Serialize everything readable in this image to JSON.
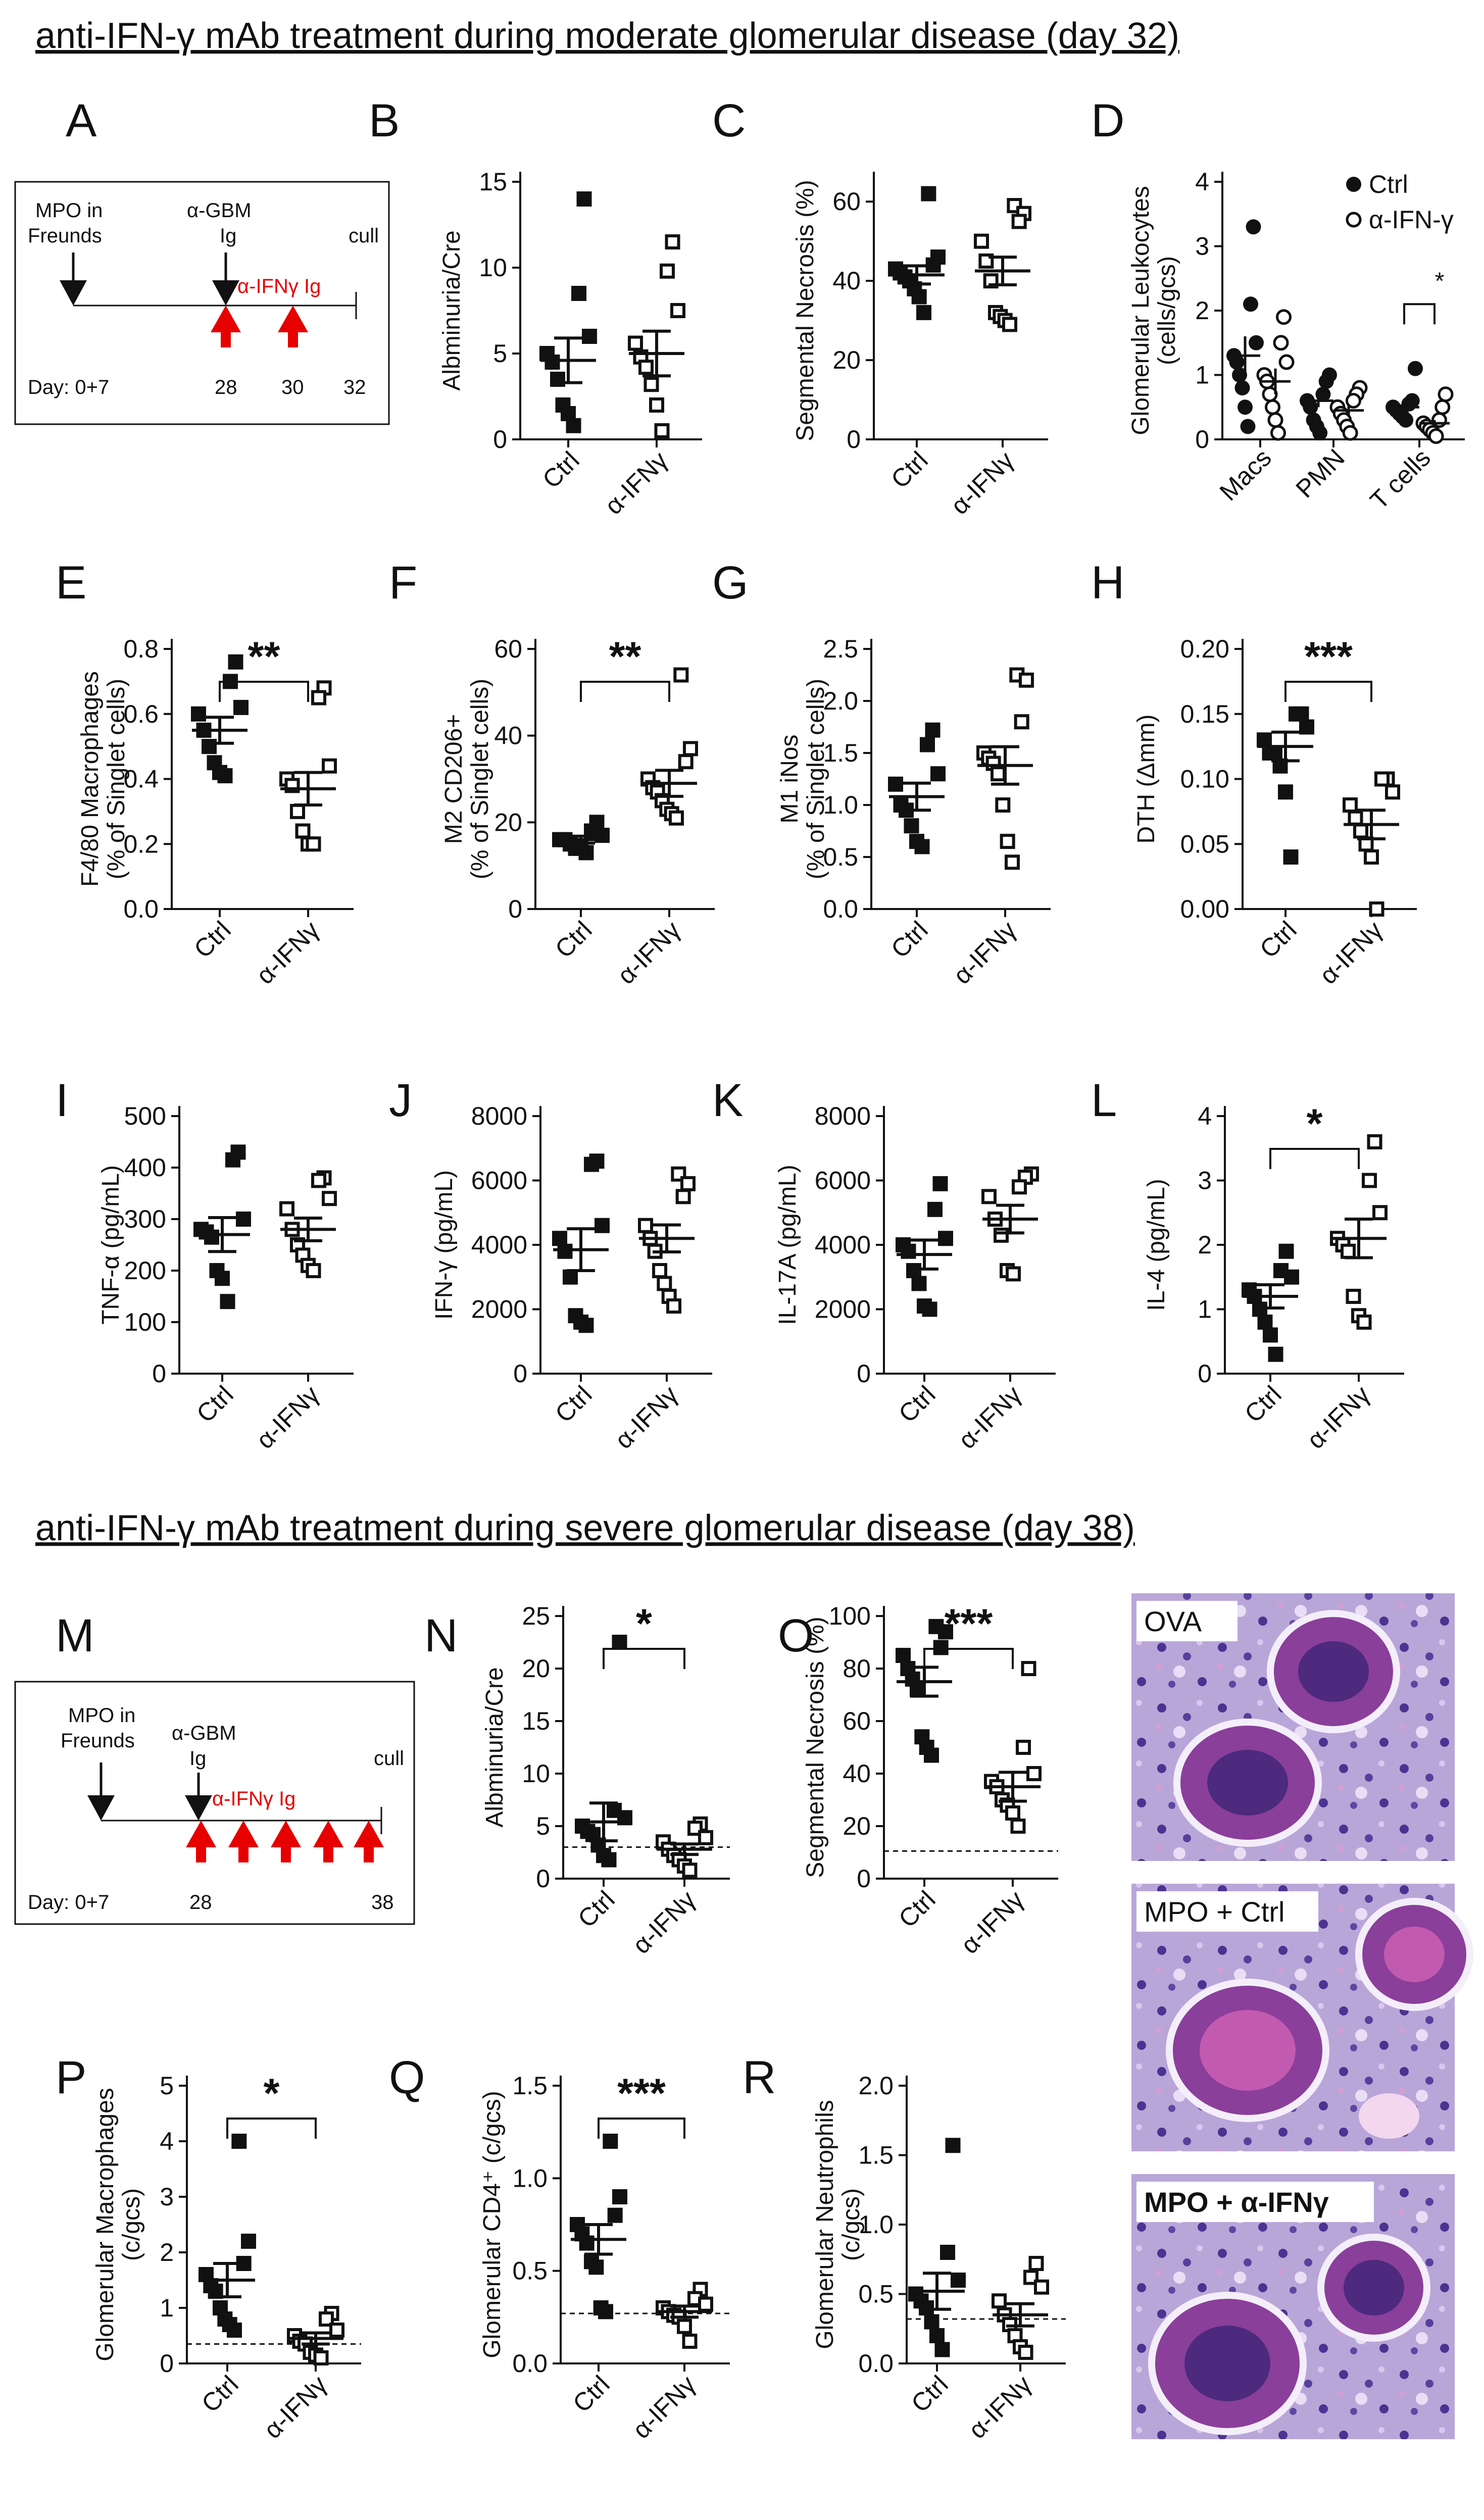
{
  "section1_title": "anti-IFN-γ mAb treatment during moderate glomerular disease (day 32)",
  "section2_title": "anti-IFN-γ mAb treatment during severe glomerular disease (day 38)",
  "colors": {
    "ink": "#111111",
    "treatment": "#e60000"
  },
  "timelines": [
    {
      "panel": "A",
      "label_mpo_1": "MPO in",
      "label_mpo_2": "Freunds",
      "label_gbm_1": "α-GBM",
      "label_gbm_2": "Ig",
      "label_treat": "α-IFNγ Ig",
      "label_cull": "cull",
      "day_start": "Day: 0+7",
      "day_gbm": "28",
      "day_treat2": "30",
      "day_end": "32",
      "treatment_days": [
        28,
        30
      ]
    },
    {
      "panel": "M",
      "label_mpo_1": "MPO in",
      "label_mpo_2": "Freunds",
      "label_gbm_1": "α-GBM",
      "label_gbm_2": "Ig",
      "label_treat": "α-IFNγ Ig",
      "label_cull": "cull",
      "day_start": "Day: 0+7",
      "day_gbm": "28",
      "day_end": "38",
      "treatment_days": [
        28,
        30,
        32,
        34,
        36
      ]
    }
  ],
  "chart_data": [
    {
      "panel": "B",
      "type": "scatter",
      "ylabel": "Albminuria/Cre",
      "ylim": [
        0,
        15
      ],
      "yticks": [
        "0",
        "5",
        "10",
        "15"
      ],
      "categories": [
        "Ctrl",
        "α-IFNγ"
      ],
      "series": [
        {
          "name": "Ctrl",
          "marker": "filled-square",
          "values": [
            14,
            8.5,
            6,
            5,
            4.5,
            3.5,
            2,
            1.5,
            0.8
          ],
          "mean": 4.6,
          "sem": 1.3
        },
        {
          "name": "α-IFNγ",
          "marker": "open-square",
          "values": [
            11.5,
            9.8,
            7.5,
            5.6,
            4.8,
            4.2,
            3.2,
            2,
            0.5
          ],
          "mean": 5.0,
          "sem": 1.3
        }
      ]
    },
    {
      "panel": "C",
      "type": "scatter",
      "ylabel": "Segmental Necrosis (%)",
      "ylim": [
        0,
        65
      ],
      "yticks": [
        "0",
        "20",
        "40",
        "60"
      ],
      "categories": [
        "Ctrl",
        "α-IFNγ"
      ],
      "series": [
        {
          "name": "Ctrl",
          "marker": "filled-square",
          "values": [
            62,
            46,
            44,
            43,
            42,
            41,
            40,
            38,
            36,
            32
          ],
          "mean": 41.5,
          "sem": 2.3
        },
        {
          "name": "α-IFNγ",
          "marker": "open-square",
          "values": [
            59,
            57,
            55,
            50,
            45,
            40,
            32,
            31,
            30,
            29
          ],
          "mean": 42.5,
          "sem": 3.5
        }
      ]
    },
    {
      "panel": "D",
      "type": "scatter",
      "ylabel": "Glomerular Leukocytes (cells/gcs)",
      "ylim": [
        0,
        4
      ],
      "yticks": [
        "0",
        "1",
        "2",
        "3",
        "4"
      ],
      "categories": [
        "Macs",
        "PMN",
        "T cells"
      ],
      "legend": [
        {
          "name": "Ctrl",
          "marker": "filled-circle"
        },
        {
          "name": "α-IFN-γ",
          "marker": "open-circle"
        }
      ],
      "groups": [
        {
          "category": "Macs",
          "ctrl": {
            "values": [
              3.3,
              2.1,
              1.5,
              1.3,
              1.2,
              1.0,
              0.8,
              0.5,
              0.2
            ],
            "mean": 1.3,
            "sem": 0.3
          },
          "treat": {
            "values": [
              1.9,
              1.5,
              1.2,
              1.0,
              0.9,
              0.7,
              0.5,
              0.3,
              0.1
            ],
            "mean": 0.9,
            "sem": 0.2
          }
        },
        {
          "category": "PMN",
          "ctrl": {
            "values": [
              1.0,
              0.9,
              0.7,
              0.6,
              0.5,
              0.3,
              0.2,
              0.1
            ],
            "mean": 0.6,
            "sem": 0.1
          },
          "treat": {
            "values": [
              0.8,
              0.7,
              0.6,
              0.5,
              0.4,
              0.3,
              0.2,
              0.1
            ],
            "mean": 0.45,
            "sem": 0.1
          }
        },
        {
          "category": "T cells",
          "ctrl": {
            "values": [
              1.1,
              0.6,
              0.55,
              0.5,
              0.45,
              0.4,
              0.35,
              0.3
            ],
            "mean": 0.5,
            "sem": 0.08
          },
          "treat": {
            "values": [
              0.7,
              0.5,
              0.3,
              0.25,
              0.2,
              0.15,
              0.1,
              0.05
            ],
            "mean": 0.25,
            "sem": 0.05
          },
          "significance": "*"
        }
      ]
    },
    {
      "panel": "E",
      "type": "scatter",
      "ylabel": "F4/80 Macrophages (% of Singlet cells)",
      "ylim": [
        0,
        0.8
      ],
      "yticks": [
        "0.0",
        "0.2",
        "0.4",
        "0.6",
        "0.8"
      ],
      "categories": [
        "Ctrl",
        "α-IFNγ"
      ],
      "significance": "**",
      "series": [
        {
          "name": "Ctrl",
          "marker": "filled-square",
          "values": [
            0.76,
            0.7,
            0.62,
            0.6,
            0.55,
            0.5,
            0.45,
            0.42,
            0.41
          ],
          "mean": 0.55,
          "sem": 0.04
        },
        {
          "name": "α-IFNγ",
          "marker": "open-square",
          "values": [
            0.68,
            0.65,
            0.44,
            0.4,
            0.38,
            0.3,
            0.24,
            0.2,
            0.2
          ],
          "mean": 0.37,
          "sem": 0.05
        }
      ]
    },
    {
      "panel": "F",
      "type": "scatter",
      "ylabel": "M2 CD206+ (% of Singlet cells)",
      "ylim": [
        0,
        60
      ],
      "yticks": [
        "0",
        "20",
        "40",
        "60"
      ],
      "categories": [
        "Ctrl",
        "α-IFNγ"
      ],
      "significance": "**",
      "series": [
        {
          "name": "Ctrl",
          "marker": "filled-square",
          "values": [
            20,
            18,
            17,
            16,
            16,
            15,
            14,
            14,
            13
          ],
          "mean": 16,
          "sem": 0.8
        },
        {
          "name": "α-IFNγ",
          "marker": "open-square",
          "values": [
            54,
            37,
            34,
            30,
            28,
            27,
            25,
            23,
            22,
            21
          ],
          "mean": 29,
          "sem": 3
        }
      ]
    },
    {
      "panel": "G",
      "type": "scatter",
      "ylabel": "M1 iNos (% of Singlet cells)",
      "ylim": [
        0,
        2.5
      ],
      "yticks": [
        "0.0",
        "0.5",
        "1.0",
        "1.5",
        "2.0",
        "2.5"
      ],
      "categories": [
        "Ctrl",
        "α-IFNγ"
      ],
      "series": [
        {
          "name": "Ctrl",
          "marker": "filled-square",
          "values": [
            1.72,
            1.58,
            1.3,
            1.2,
            1.0,
            0.95,
            0.8,
            0.65,
            0.6
          ],
          "mean": 1.08,
          "sem": 0.13
        },
        {
          "name": "α-IFNγ",
          "marker": "open-square",
          "values": [
            2.25,
            2.2,
            1.8,
            1.5,
            1.45,
            1.4,
            1.3,
            1.0,
            0.65,
            0.45
          ],
          "mean": 1.38,
          "sem": 0.18
        }
      ]
    },
    {
      "panel": "H",
      "type": "scatter",
      "ylabel": "DTH (Δmm)",
      "ylim": [
        0,
        0.2
      ],
      "yticks": [
        "0.00",
        "0.05",
        "0.10",
        "0.15",
        "0.20"
      ],
      "categories": [
        "Ctrl",
        "α-IFNγ"
      ],
      "significance": "***",
      "series": [
        {
          "name": "Ctrl",
          "marker": "filled-square",
          "values": [
            0.15,
            0.15,
            0.14,
            0.13,
            0.12,
            0.12,
            0.11,
            0.09,
            0.04
          ],
          "mean": 0.125,
          "sem": 0.011
        },
        {
          "name": "α-IFNγ",
          "marker": "open-square",
          "values": [
            0.1,
            0.1,
            0.09,
            0.08,
            0.07,
            0.06,
            0.05,
            0.04,
            0.0
          ],
          "mean": 0.065,
          "sem": 0.011
        }
      ]
    },
    {
      "panel": "I",
      "type": "scatter",
      "ylabel": "TNF-α (pg/mL)",
      "ylim": [
        0,
        500
      ],
      "yticks": [
        "0",
        "100",
        "200",
        "300",
        "400",
        "500"
      ],
      "categories": [
        "Ctrl",
        "α-IFNγ"
      ],
      "series": [
        {
          "name": "Ctrl",
          "marker": "filled-square",
          "values": [
            430,
            415,
            300,
            280,
            275,
            265,
            200,
            185,
            140
          ],
          "mean": 270,
          "sem": 33
        },
        {
          "name": "α-IFNγ",
          "marker": "open-square",
          "values": [
            380,
            375,
            340,
            320,
            280,
            250,
            230,
            210,
            200
          ],
          "mean": 280,
          "sem": 22
        }
      ]
    },
    {
      "panel": "J",
      "type": "scatter",
      "ylabel": "IFN-γ (pg/mL)",
      "ylim": [
        0,
        8000
      ],
      "yticks": [
        "0",
        "2000",
        "4000",
        "6000",
        "8000"
      ],
      "categories": [
        "Ctrl",
        "α-IFNγ"
      ],
      "series": [
        {
          "name": "Ctrl",
          "marker": "filled-square",
          "values": [
            6600,
            6500,
            4600,
            4200,
            3800,
            3000,
            1800,
            1600,
            1500
          ],
          "mean": 3850,
          "sem": 650
        },
        {
          "name": "α-IFNγ",
          "marker": "open-square",
          "values": [
            6200,
            5900,
            5500,
            4600,
            4200,
            3800,
            3200,
            2800,
            2400,
            2100
          ],
          "mean": 4200,
          "sem": 420
        }
      ]
    },
    {
      "panel": "K",
      "type": "scatter",
      "ylabel": "IL-17A (pg/mL)",
      "ylim": [
        0,
        8000
      ],
      "yticks": [
        "0",
        "2000",
        "4000",
        "6000",
        "8000"
      ],
      "categories": [
        "Ctrl",
        "α-IFNγ"
      ],
      "series": [
        {
          "name": "Ctrl",
          "marker": "filled-square",
          "values": [
            5900,
            5100,
            4200,
            4000,
            3800,
            3200,
            2800,
            2100,
            2000
          ],
          "mean": 3700,
          "sem": 450
        },
        {
          "name": "α-IFNγ",
          "marker": "open-square",
          "values": [
            6200,
            6100,
            5800,
            5500,
            4800,
            4300,
            3200,
            3100
          ],
          "mean": 4800,
          "sem": 430
        }
      ]
    },
    {
      "panel": "L",
      "type": "scatter",
      "ylabel": "IL-4 (pg/mL)",
      "ylim": [
        0,
        4
      ],
      "yticks": [
        "0",
        "1",
        "2",
        "3",
        "4"
      ],
      "categories": [
        "Ctrl",
        "α-IFNγ"
      ],
      "significance": "*",
      "series": [
        {
          "name": "Ctrl",
          "marker": "filled-square",
          "values": [
            1.9,
            1.6,
            1.5,
            1.3,
            1.2,
            1.0,
            0.8,
            0.6,
            0.3
          ],
          "mean": 1.2,
          "sem": 0.18
        },
        {
          "name": "α-IFNγ",
          "marker": "open-square",
          "values": [
            3.6,
            3.0,
            2.5,
            2.1,
            2.0,
            1.9,
            1.2,
            0.9,
            0.8
          ],
          "mean": 2.1,
          "sem": 0.3
        }
      ]
    },
    {
      "panel": "N",
      "type": "scatter",
      "ylabel": "Albminuria/Cre",
      "ylim": [
        0,
        25
      ],
      "yticks": [
        "0",
        "5",
        "10",
        "15",
        "20",
        "25"
      ],
      "categories": [
        "Ctrl",
        "α-IFNγ"
      ],
      "significance": "*",
      "reference_line": 3.0,
      "series": [
        {
          "name": "Ctrl",
          "marker": "filled-square",
          "values": [
            22.5,
            6.5,
            5.8,
            5,
            4.5,
            4.2,
            3.2,
            2.2,
            1.8
          ],
          "mean": 5.4,
          "sem": 1.8
        },
        {
          "name": "α-IFNγ",
          "marker": "open-square",
          "values": [
            5.2,
            4.8,
            3.9,
            3.5,
            2.8,
            2.2,
            1.8,
            1.2,
            0.8
          ],
          "mean": 2.8,
          "sem": 0.5
        }
      ]
    },
    {
      "panel": "O",
      "type": "scatter",
      "ylabel": "Segmental Necrosis (%)",
      "ylim": [
        0,
        100
      ],
      "yticks": [
        "0",
        "20",
        "40",
        "60",
        "80",
        "100"
      ],
      "categories": [
        "Ctrl",
        "α-IFNγ"
      ],
      "significance": "***",
      "reference_line": 10.5,
      "series": [
        {
          "name": "Ctrl",
          "marker": "filled-square",
          "values": [
            96,
            94,
            88,
            85,
            80,
            76,
            72,
            54,
            50,
            47
          ],
          "mean": 75,
          "sem": 5.5
        },
        {
          "name": "α-IFNγ",
          "marker": "open-square",
          "values": [
            80,
            50,
            40,
            37,
            35,
            30,
            28,
            25,
            20
          ],
          "mean": 35,
          "sem": 5.5
        }
      ]
    },
    {
      "panel": "P",
      "type": "scatter",
      "ylabel": "Glomerular Macrophages (c/gcs)",
      "ylim": [
        0,
        5
      ],
      "yticks": [
        "0",
        "1",
        "2",
        "3",
        "4",
        "5"
      ],
      "categories": [
        "Ctrl",
        "α-IFNγ"
      ],
      "significance": "*",
      "reference_line": 0.35,
      "series": [
        {
          "name": "Ctrl",
          "marker": "filled-square",
          "values": [
            4.0,
            2.2,
            1.8,
            1.6,
            1.4,
            1.3,
            1.0,
            0.8,
            0.7,
            0.6
          ],
          "mean": 1.5,
          "sem": 0.3
        },
        {
          "name": "α-IFNγ",
          "marker": "open-square",
          "values": [
            0.9,
            0.8,
            0.6,
            0.5,
            0.4,
            0.35,
            0.2,
            0.15,
            0.1
          ],
          "mean": 0.45,
          "sem": 0.1
        }
      ]
    },
    {
      "panel": "Q",
      "type": "scatter",
      "ylabel": "Glomerular CD4⁺ (c/gcs)",
      "ylim": [
        0,
        1.5
      ],
      "yticks": [
        "0.0",
        "0.5",
        "1.0",
        "1.5"
      ],
      "categories": [
        "Ctrl",
        "α-IFNγ"
      ],
      "significance": "***",
      "reference_line": 0.27,
      "series": [
        {
          "name": "Ctrl",
          "marker": "filled-square",
          "values": [
            1.2,
            0.9,
            0.8,
            0.75,
            0.7,
            0.65,
            0.55,
            0.52,
            0.3,
            0.28
          ],
          "mean": 0.67,
          "sem": 0.08
        },
        {
          "name": "α-IFNγ",
          "marker": "open-square",
          "values": [
            0.4,
            0.35,
            0.32,
            0.3,
            0.28,
            0.26,
            0.25,
            0.2,
            0.12
          ],
          "mean": 0.28,
          "sem": 0.03
        }
      ]
    },
    {
      "panel": "R",
      "type": "scatter",
      "ylabel": "Glomerular Neutrophils (c/gcs)",
      "ylim": [
        0,
        2
      ],
      "yticks": [
        "0.0",
        "0.5",
        "1.0",
        "1.5",
        "2.0"
      ],
      "categories": [
        "Ctrl",
        "α-IFNγ"
      ],
      "reference_line": 0.32,
      "series": [
        {
          "name": "Ctrl",
          "marker": "filled-square",
          "values": [
            1.57,
            0.8,
            0.6,
            0.5,
            0.45,
            0.4,
            0.3,
            0.2,
            0.1
          ],
          "mean": 0.52,
          "sem": 0.13
        },
        {
          "name": "α-IFNγ",
          "marker": "open-square",
          "values": [
            0.72,
            0.62,
            0.55,
            0.45,
            0.35,
            0.28,
            0.2,
            0.12,
            0.08
          ],
          "mean": 0.35,
          "sem": 0.08
        }
      ]
    }
  ],
  "histology": [
    {
      "label": "OVA"
    },
    {
      "label": "MPO + Ctrl"
    },
    {
      "label": "MPO + α-IFNγ"
    }
  ]
}
